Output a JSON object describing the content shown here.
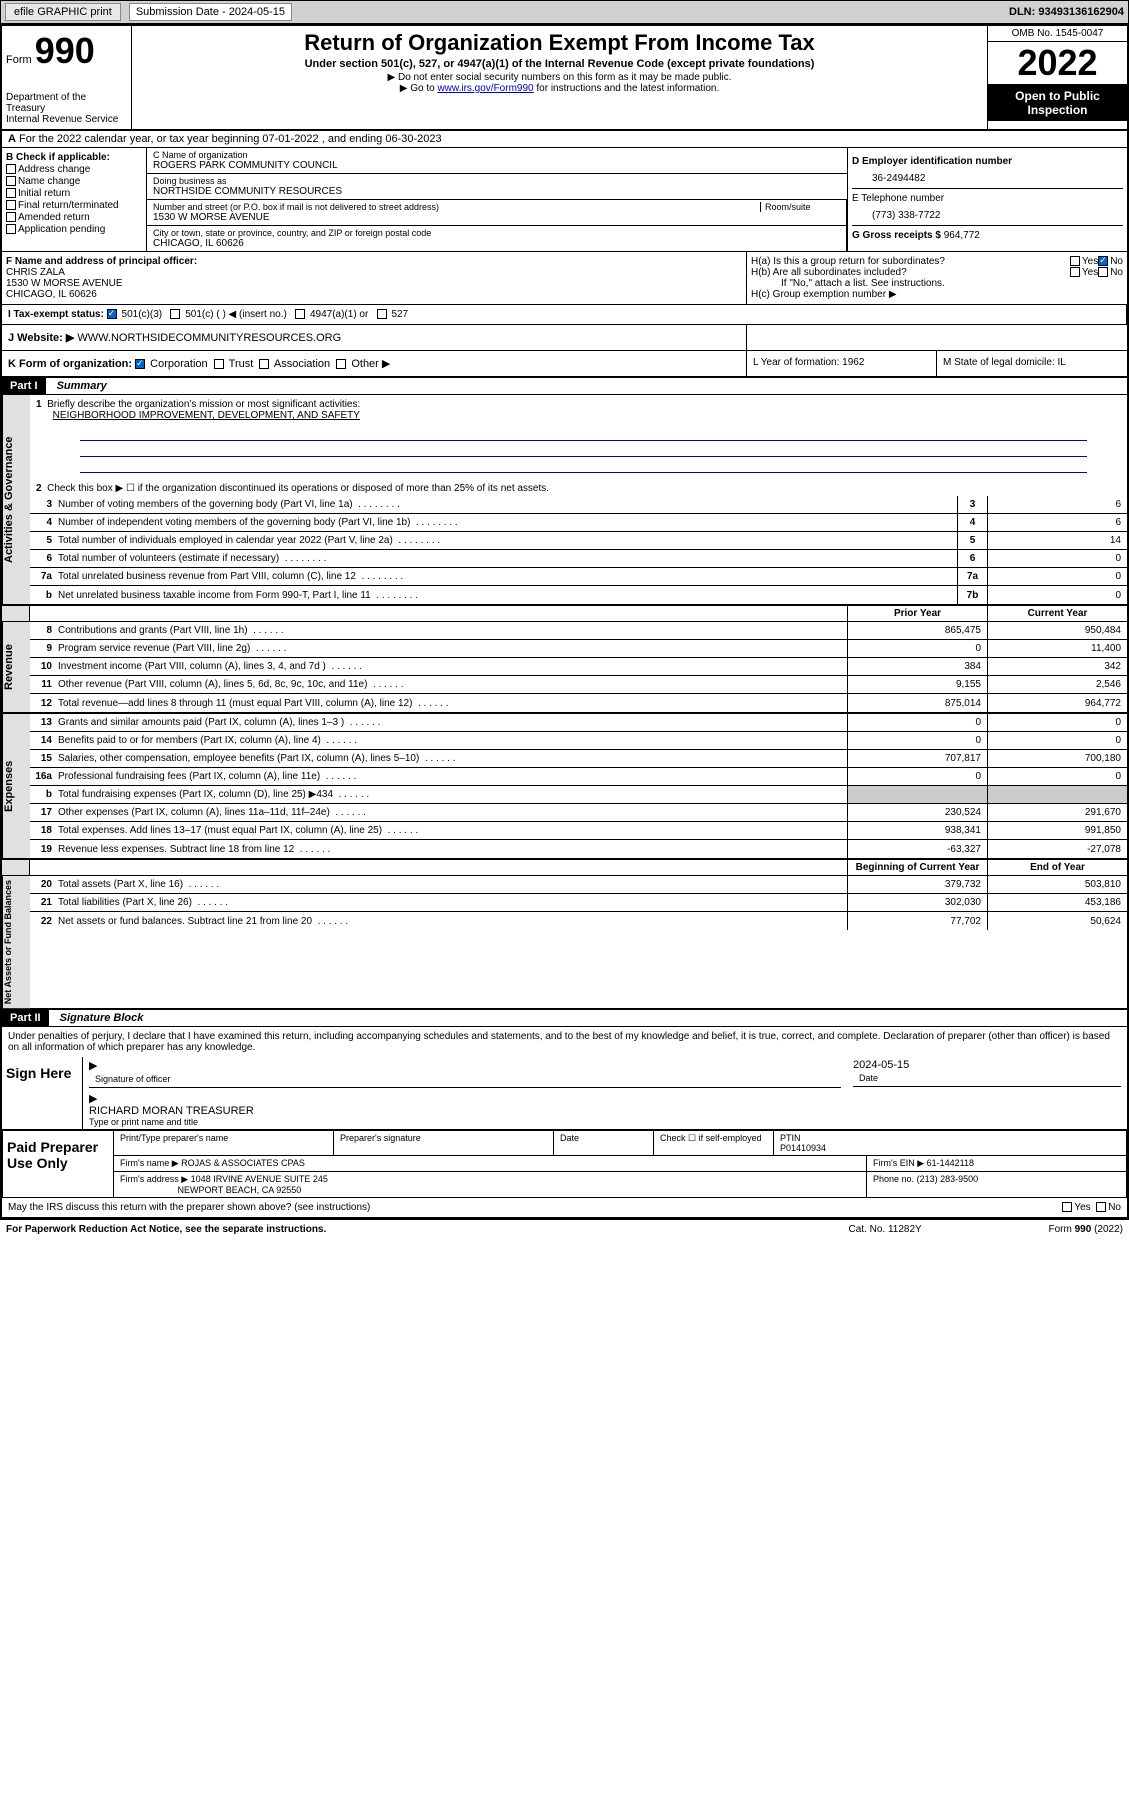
{
  "topbar": {
    "efile": "efile GRAPHIC print",
    "sub_label": "Submission Date - 2024-05-15",
    "dln": "DLN: 93493136162904"
  },
  "header": {
    "form": "Form",
    "num": "990",
    "title": "Return of Organization Exempt From Income Tax",
    "subtitle": "Under section 501(c), 527, or 4947(a)(1) of the Internal Revenue Code (except private foundations)",
    "instr1": "▶ Do not enter social security numbers on this form as it may be made public.",
    "instr2_pre": "▶ Go to ",
    "instr2_link": "www.irs.gov/Form990",
    "instr2_post": " for instructions and the latest information.",
    "dept": "Department of the Treasury",
    "irs": "Internal Revenue Service",
    "omb": "OMB No. 1545-0047",
    "year": "2022",
    "inspect": "Open to Public Inspection"
  },
  "row_a": "For the 2022 calendar year, or tax year beginning 07-01-2022  , and ending 06-30-2023",
  "box_b": {
    "label": "B Check if applicable:",
    "opts": [
      "Address change",
      "Name change",
      "Initial return",
      "Final return/terminated",
      "Amended return",
      "Application pending"
    ]
  },
  "box_c": {
    "name_label": "C Name of organization",
    "name": "ROGERS PARK COMMUNITY COUNCIL",
    "dba_label": "Doing business as",
    "dba": "NORTHSIDE COMMUNITY RESOURCES",
    "addr_label": "Number and street (or P.O. box if mail is not delivered to street address)",
    "room_label": "Room/suite",
    "addr": "1530 W MORSE AVENUE",
    "city_label": "City or town, state or province, country, and ZIP or foreign postal code",
    "city": "CHICAGO, IL  60626"
  },
  "box_d": {
    "label": "D Employer identification number",
    "ein": "36-2494482",
    "tel_label": "E Telephone number",
    "tel": "(773) 338-7722",
    "gross_label": "G Gross receipts $",
    "gross": "964,772"
  },
  "box_f": {
    "label": "F Name and address of principal officer:",
    "name": "CHRIS ZALA",
    "addr1": "1530 W MORSE AVENUE",
    "addr2": "CHICAGO, IL  60626"
  },
  "box_h": {
    "ha": "H(a)  Is this a group return for subordinates?",
    "hb": "H(b)  Are all subordinates included?",
    "hb_note": "If \"No,\" attach a list. See instructions.",
    "hc": "H(c)  Group exemption number ▶"
  },
  "row_i": {
    "label": "I    Tax-exempt status:",
    "opts": [
      "501(c)(3)",
      "501(c) (  ) ◀ (insert no.)",
      "4947(a)(1) or",
      "527"
    ]
  },
  "row_j": {
    "label": "J    Website: ▶",
    "site": "WWW.NORTHSIDECOMMUNITYRESOURCES.ORG"
  },
  "row_k": {
    "label": "K Form of organization:",
    "opts": [
      "Corporation",
      "Trust",
      "Association",
      "Other ▶"
    ],
    "l": "L Year of formation: 1962",
    "m": "M State of legal domicile: IL"
  },
  "part1": {
    "hdr": "Part I",
    "title": "Summary",
    "line1": "Briefly describe the organization's mission or most significant activities:",
    "mission": "NEIGHBORHOOD IMPROVEMENT, DEVELOPMENT, AND SAFETY",
    "line2": "Check this box ▶ ☐  if the organization discontinued its operations or disposed of more than 25% of its net assets.",
    "rows_gov": [
      {
        "n": "3",
        "t": "Number of voting members of the governing body (Part VI, line 1a)",
        "b": "3",
        "v": "6"
      },
      {
        "n": "4",
        "t": "Number of independent voting members of the governing body (Part VI, line 1b)",
        "b": "4",
        "v": "6"
      },
      {
        "n": "5",
        "t": "Total number of individuals employed in calendar year 2022 (Part V, line 2a)",
        "b": "5",
        "v": "14"
      },
      {
        "n": "6",
        "t": "Total number of volunteers (estimate if necessary)",
        "b": "6",
        "v": "0"
      },
      {
        "n": "7a",
        "t": "Total unrelated business revenue from Part VIII, column (C), line 12",
        "b": "7a",
        "v": "0"
      },
      {
        "n": "b",
        "t": "Net unrelated business taxable income from Form 990-T, Part I, line 11",
        "b": "7b",
        "v": "0"
      }
    ],
    "col_prior": "Prior Year",
    "col_curr": "Current Year",
    "rows_rev": [
      {
        "n": "8",
        "t": "Contributions and grants (Part VIII, line 1h)",
        "p": "865,475",
        "c": "950,484"
      },
      {
        "n": "9",
        "t": "Program service revenue (Part VIII, line 2g)",
        "p": "0",
        "c": "11,400"
      },
      {
        "n": "10",
        "t": "Investment income (Part VIII, column (A), lines 3, 4, and 7d )",
        "p": "384",
        "c": "342"
      },
      {
        "n": "11",
        "t": "Other revenue (Part VIII, column (A), lines 5, 6d, 8c, 9c, 10c, and 11e)",
        "p": "9,155",
        "c": "2,546"
      },
      {
        "n": "12",
        "t": "Total revenue—add lines 8 through 11 (must equal Part VIII, column (A), line 12)",
        "p": "875,014",
        "c": "964,772"
      }
    ],
    "rows_exp": [
      {
        "n": "13",
        "t": "Grants and similar amounts paid (Part IX, column (A), lines 1–3 )",
        "p": "0",
        "c": "0"
      },
      {
        "n": "14",
        "t": "Benefits paid to or for members (Part IX, column (A), line 4)",
        "p": "0",
        "c": "0"
      },
      {
        "n": "15",
        "t": "Salaries, other compensation, employee benefits (Part IX, column (A), lines 5–10)",
        "p": "707,817",
        "c": "700,180"
      },
      {
        "n": "16a",
        "t": "Professional fundraising fees (Part IX, column (A), line 11e)",
        "p": "0",
        "c": "0"
      },
      {
        "n": "b",
        "t": "Total fundraising expenses (Part IX, column (D), line 25) ▶434",
        "p": "",
        "c": ""
      },
      {
        "n": "17",
        "t": "Other expenses (Part IX, column (A), lines 11a–11d, 11f–24e)",
        "p": "230,524",
        "c": "291,670"
      },
      {
        "n": "18",
        "t": "Total expenses. Add lines 13–17 (must equal Part IX, column (A), line 25)",
        "p": "938,341",
        "c": "991,850"
      },
      {
        "n": "19",
        "t": "Revenue less expenses. Subtract line 18 from line 12",
        "p": "-63,327",
        "c": "-27,078"
      }
    ],
    "col_begin": "Beginning of Current Year",
    "col_end": "End of Year",
    "rows_net": [
      {
        "n": "20",
        "t": "Total assets (Part X, line 16)",
        "p": "379,732",
        "c": "503,810"
      },
      {
        "n": "21",
        "t": "Total liabilities (Part X, line 26)",
        "p": "302,030",
        "c": "453,186"
      },
      {
        "n": "22",
        "t": "Net assets or fund balances. Subtract line 21 from line 20",
        "p": "77,702",
        "c": "50,624"
      }
    ],
    "side_gov": "Activities & Governance",
    "side_rev": "Revenue",
    "side_exp": "Expenses",
    "side_net": "Net Assets or Fund Balances"
  },
  "part2": {
    "hdr": "Part II",
    "title": "Signature Block",
    "decl": "Under penalties of perjury, I declare that I have examined this return, including accompanying schedules and statements, and to the best of my knowledge and belief, it is true, correct, and complete. Declaration of preparer (other than officer) is based on all information of which preparer has any knowledge.",
    "sign_here": "Sign Here",
    "sig_officer": "Signature of officer",
    "sig_date": "2024-05-15",
    "sig_date_label": "Date",
    "sig_name": "RICHARD MORAN  TREASURER",
    "sig_name_label": "Type or print name and title",
    "paid": "Paid Preparer Use Only",
    "prep_name_label": "Print/Type preparer's name",
    "prep_sig_label": "Preparer's signature",
    "prep_date_label": "Date",
    "prep_check": "Check ☐ if self-employed",
    "ptin_label": "PTIN",
    "ptin": "P01410934",
    "firm_name_label": "Firm's name    ▶",
    "firm_name": "ROJAS & ASSOCIATES CPAS",
    "firm_ein_label": "Firm's EIN ▶",
    "firm_ein": "61-1442118",
    "firm_addr_label": "Firm's address ▶",
    "firm_addr1": "1048 IRVINE AVENUE SUITE 245",
    "firm_addr2": "NEWPORT BEACH, CA  92550",
    "phone_label": "Phone no.",
    "phone": "(213) 283-9500",
    "may_irs": "May the IRS discuss this return with the preparer shown above? (see instructions)"
  },
  "footer": {
    "left": "For Paperwork Reduction Act Notice, see the separate instructions.",
    "mid": "Cat. No. 11282Y",
    "right": "Form 990 (2022)"
  }
}
